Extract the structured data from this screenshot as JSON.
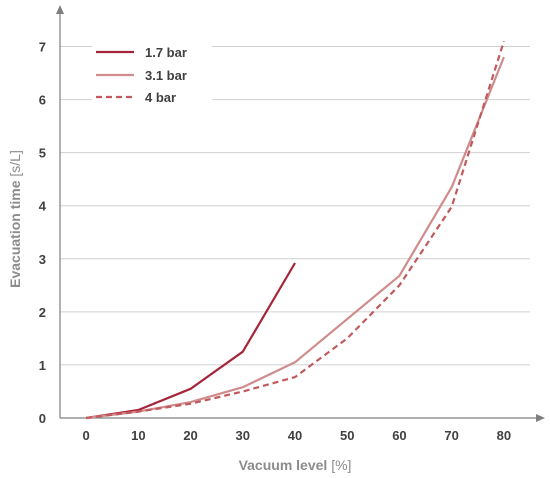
{
  "chart_data": {
    "type": "line",
    "title": "",
    "xlabel": "Vacuum level",
    "xlabel_unit": "[%]",
    "ylabel": "Evacuation time",
    "ylabel_unit": "[s/L]",
    "xlim": [
      -5,
      85
    ],
    "ylim": [
      0,
      7.5
    ],
    "x_ticks": [
      0,
      10,
      20,
      30,
      40,
      50,
      60,
      70,
      80
    ],
    "y_ticks": [
      0,
      1,
      2,
      3,
      4,
      5,
      6,
      7
    ],
    "grid": "horizontal",
    "legend_position": "top-left",
    "series": [
      {
        "name": "1.7 bar",
        "color": "#a5253a",
        "style": "solid",
        "x": [
          0,
          10,
          20,
          30,
          40
        ],
        "y": [
          0,
          0.15,
          0.55,
          1.25,
          2.92
        ]
      },
      {
        "name": "3.1 bar",
        "color": "#d08c8c",
        "style": "solid",
        "x": [
          0,
          10,
          20,
          30,
          40,
          60,
          70,
          80
        ],
        "y": [
          0,
          0.12,
          0.3,
          0.58,
          1.05,
          2.68,
          4.35,
          6.8
        ]
      },
      {
        "name": "4 bar",
        "color": "#c05a5e",
        "style": "dashed",
        "x": [
          0,
          10,
          20,
          30,
          40,
          50,
          60,
          70,
          80
        ],
        "y": [
          0,
          0.12,
          0.27,
          0.5,
          0.77,
          1.5,
          2.5,
          3.98,
          7.1
        ]
      }
    ]
  }
}
